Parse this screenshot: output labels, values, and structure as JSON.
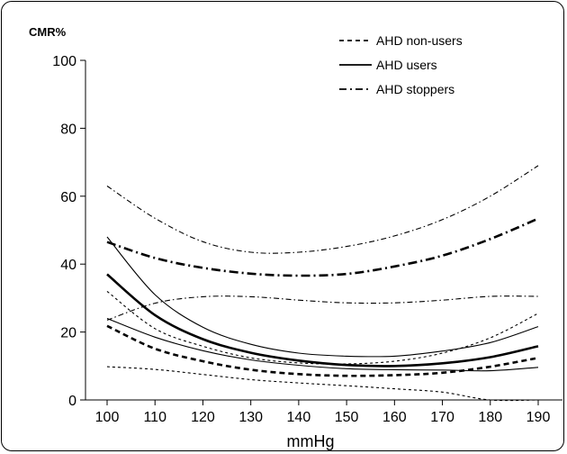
{
  "chart_data": {
    "type": "line",
    "y_axis_title": "CMR%",
    "xlabel": "mmHg",
    "xlim": [
      95,
      195
    ],
    "ylim": [
      0,
      100
    ],
    "x": [
      100,
      110,
      120,
      130,
      140,
      150,
      160,
      170,
      180,
      190
    ],
    "x_ticks": [
      100,
      110,
      120,
      130,
      140,
      150,
      160,
      170,
      180,
      190
    ],
    "y_ticks": [
      0,
      20,
      40,
      60,
      80,
      100
    ],
    "legend_position": "top-right",
    "series": [
      {
        "name": "AHD non-users",
        "style": "dashed",
        "role": "estimate",
        "values": [
          21.8,
          15.1,
          11.4,
          8.9,
          7.6,
          7.1,
          7.3,
          8.0,
          9.8,
          12.4
        ]
      },
      {
        "name": "AHD users",
        "style": "solid",
        "role": "estimate",
        "values": [
          37.0,
          25.0,
          17.9,
          13.9,
          11.6,
          10.3,
          10.0,
          10.8,
          12.6,
          15.8
        ]
      },
      {
        "name": "AHD stoppers",
        "style": "dash-dot",
        "role": "estimate",
        "values": [
          46.5,
          41.8,
          38.9,
          37.2,
          36.6,
          37.1,
          39.3,
          42.5,
          47.4,
          53.4
        ]
      },
      {
        "style": "dashed",
        "role": "upper-bound",
        "values": [
          32.0,
          21.0,
          15.8,
          12.4,
          10.9,
          10.6,
          11.4,
          13.8,
          18.3,
          25.5
        ]
      },
      {
        "style": "dashed",
        "role": "lower-bound",
        "values": [
          9.8,
          9.0,
          7.5,
          6.0,
          5.0,
          4.2,
          3.3,
          2.3,
          0.0,
          0.0
        ]
      },
      {
        "style": "solid",
        "role": "upper-bound",
        "values": [
          48.0,
          31.0,
          21.4,
          16.4,
          13.8,
          12.9,
          12.9,
          14.4,
          16.9,
          21.6
        ]
      },
      {
        "style": "solid",
        "role": "lower-bound",
        "values": [
          24.0,
          18.5,
          14.5,
          11.8,
          10.2,
          9.2,
          8.9,
          8.8,
          8.6,
          9.6
        ]
      },
      {
        "style": "dash-dot",
        "role": "upper-bound",
        "values": [
          63.0,
          53.5,
          46.6,
          43.5,
          43.5,
          45.2,
          48.3,
          53.1,
          60.0,
          69.0
        ]
      },
      {
        "style": "dash-dot",
        "role": "lower-bound",
        "values": [
          23.5,
          28.5,
          30.4,
          30.4,
          29.4,
          28.6,
          28.6,
          29.4,
          30.5,
          30.5
        ]
      }
    ]
  }
}
